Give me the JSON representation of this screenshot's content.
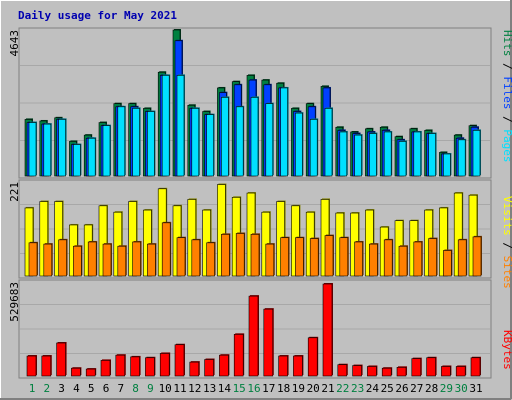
{
  "colors": {
    "background": "#c0c0c0",
    "title": "#0000b0",
    "hits": "#008040",
    "files": "#0040ff",
    "pages": "#00e0ff",
    "visits": "#ffff00",
    "sites": "#ff8000",
    "kbytes": "#ff0000",
    "weekday_label": "#000000",
    "weekend_label": "#008040"
  },
  "chart_data": [
    {
      "type": "bar",
      "title": "Daily usage for May 2021",
      "panel": "hits_files_pages",
      "ymax_label": "4643",
      "ylim": [
        0,
        4643
      ],
      "legend": [
        "Pages",
        "Files",
        "Hits"
      ],
      "categories": [
        "1",
        "2",
        "3",
        "4",
        "5",
        "6",
        "7",
        "8",
        "9",
        "10",
        "11",
        "12",
        "13",
        "14",
        "15",
        "16",
        "17",
        "18",
        "19",
        "20",
        "21",
        "22",
        "23",
        "24",
        "25",
        "26",
        "27",
        "28",
        "29",
        "30",
        "31"
      ],
      "series": [
        {
          "name": "Hits",
          "values": [
            1800,
            1750,
            1850,
            1100,
            1300,
            1700,
            2300,
            2300,
            2150,
            3300,
            4643,
            2250,
            2050,
            2800,
            3000,
            3200,
            3050,
            2950,
            2150,
            2300,
            2850,
            1550,
            1400,
            1500,
            1550,
            1250,
            1500,
            1450,
            750,
            1300,
            1600
          ]
        },
        {
          "name": "Files",
          "values": [
            1700,
            1650,
            1800,
            1000,
            1200,
            1600,
            2200,
            2200,
            2050,
            3200,
            4300,
            2150,
            1950,
            2650,
            2900,
            3050,
            2900,
            2800,
            2050,
            2200,
            2800,
            1450,
            1350,
            1400,
            1450,
            1150,
            1400,
            1350,
            700,
            1200,
            1550
          ]
        },
        {
          "name": "Pages",
          "values": [
            1700,
            1650,
            1800,
            1000,
            1200,
            1600,
            2200,
            2150,
            2050,
            3200,
            3200,
            2150,
            1950,
            2500,
            2200,
            2500,
            2300,
            2800,
            2000,
            1800,
            2150,
            1400,
            1300,
            1350,
            1400,
            1100,
            1400,
            1350,
            700,
            1150,
            1450
          ]
        }
      ]
    },
    {
      "type": "bar",
      "panel": "visits_sites",
      "ymax_label": "221",
      "ylim": [
        0,
        221
      ],
      "legend": [
        "Sites",
        "Visits"
      ],
      "categories": [
        "1",
        "2",
        "3",
        "4",
        "5",
        "6",
        "7",
        "8",
        "9",
        "10",
        "11",
        "12",
        "13",
        "14",
        "15",
        "16",
        "17",
        "18",
        "19",
        "20",
        "21",
        "22",
        "23",
        "24",
        "25",
        "26",
        "27",
        "28",
        "29",
        "30",
        "31"
      ],
      "series": [
        {
          "name": "Visits",
          "values": [
            160,
            175,
            175,
            120,
            120,
            165,
            150,
            175,
            155,
            205,
            165,
            180,
            155,
            215,
            185,
            195,
            150,
            175,
            165,
            150,
            180,
            148,
            148,
            155,
            115,
            130,
            130,
            155,
            160,
            195,
            190
          ]
        },
        {
          "name": "Sites",
          "values": [
            78,
            75,
            85,
            70,
            80,
            75,
            70,
            80,
            75,
            125,
            90,
            85,
            78,
            98,
            100,
            98,
            75,
            90,
            90,
            88,
            95,
            90,
            80,
            75,
            85,
            70,
            80,
            88,
            60,
            85,
            92
          ]
        }
      ]
    },
    {
      "type": "bar",
      "panel": "kbytes",
      "ymax_label": "529683",
      "ylim": [
        0,
        529683
      ],
      "legend": [
        "KBytes"
      ],
      "categories": [
        "1",
        "2",
        "3",
        "4",
        "5",
        "6",
        "7",
        "8",
        "9",
        "10",
        "11",
        "12",
        "13",
        "14",
        "15",
        "16",
        "17",
        "18",
        "19",
        "20",
        "21",
        "22",
        "23",
        "24",
        "25",
        "26",
        "27",
        "28",
        "29",
        "30",
        "31"
      ],
      "series": [
        {
          "name": "KBytes",
          "values": [
            115000,
            115000,
            190000,
            45000,
            40000,
            90000,
            120000,
            110000,
            105000,
            130000,
            180000,
            80000,
            95000,
            120000,
            240000,
            460000,
            385000,
            115000,
            115000,
            220000,
            529683,
            65000,
            60000,
            55000,
            45000,
            50000,
            100000,
            105000,
            55000,
            55000,
            105000
          ]
        }
      ]
    }
  ]
}
